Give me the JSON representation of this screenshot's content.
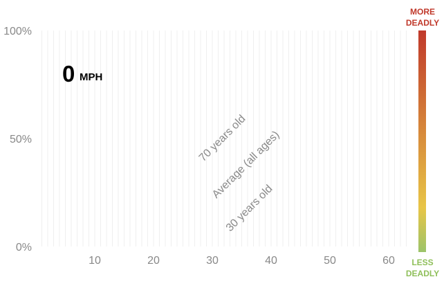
{
  "chart_data": {
    "type": "line",
    "title": "",
    "xlabel": "",
    "ylabel": "",
    "xlim": [
      0,
      64
    ],
    "ylim": [
      0,
      100
    ],
    "x_ticks": [
      10,
      20,
      30,
      40,
      50,
      60
    ],
    "y_ticks": [
      {
        "value": 0,
        "label": "0%"
      },
      {
        "value": 50,
        "label": "50%"
      },
      {
        "value": 100,
        "label": "100%"
      }
    ],
    "grid": "vertical lines at every 1 mph",
    "speed_readout": {
      "value": "0",
      "unit": "MPH"
    },
    "series": [
      {
        "name": "70 years old",
        "x": [],
        "y": []
      },
      {
        "name": "Average (all ages)",
        "x": [],
        "y": []
      },
      {
        "name": "30 years old",
        "x": [],
        "y": []
      }
    ],
    "colorbar": {
      "top_label_line1": "MORE",
      "top_label_line2": "DEADLY",
      "bottom_label_line1": "LESS",
      "bottom_label_line2": "DEADLY",
      "top_color": "#c0392b",
      "mid_color": "#e8c547",
      "bottom_color": "#9cc46a"
    }
  }
}
